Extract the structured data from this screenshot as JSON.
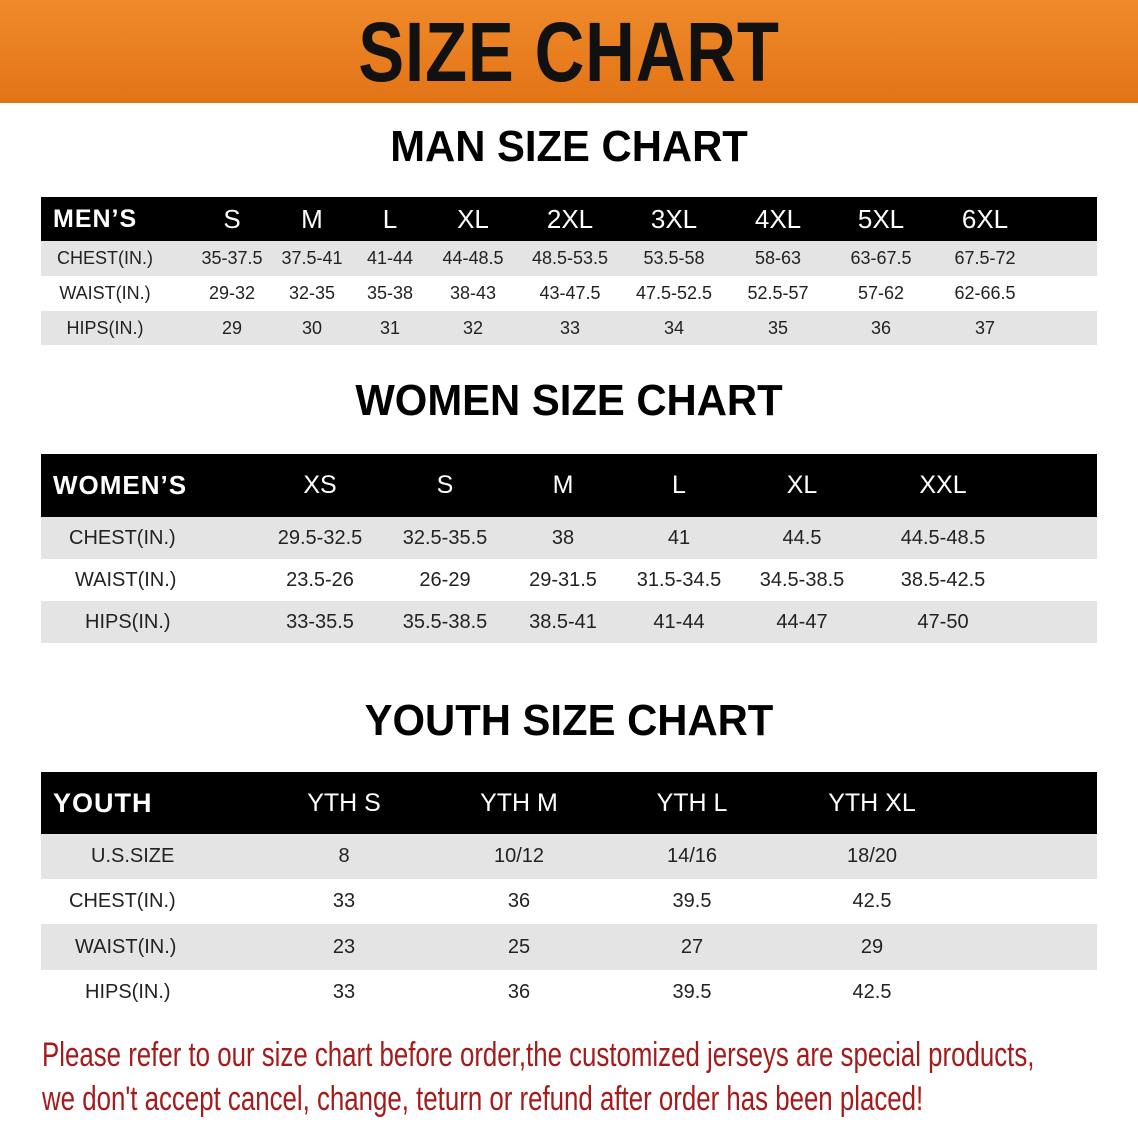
{
  "banner_title": "SIZE CHART",
  "men": {
    "title": "MAN SIZE CHART",
    "header_label": "MEN’S",
    "sizes": [
      "S",
      "M",
      "L",
      "XL",
      "2XL",
      "3XL",
      "4XL",
      "5XL",
      "6XL"
    ],
    "rows": [
      {
        "label": "CHEST(IN.)",
        "values": [
          "35-37.5",
          "37.5-41",
          "41-44",
          "44-48.5",
          "48.5-53.5",
          "53.5-58",
          "58-63",
          "63-67.5",
          "67.5-72"
        ]
      },
      {
        "label": "WAIST(IN.)",
        "values": [
          "29-32",
          "32-35",
          "35-38",
          "38-43",
          "43-47.5",
          "47.5-52.5",
          "52.5-57",
          "57-62",
          "62-66.5"
        ]
      },
      {
        "label": "HIPS(IN.)",
        "values": [
          "29",
          "30",
          "31",
          "32",
          "33",
          "34",
          "35",
          "36",
          "37"
        ]
      }
    ]
  },
  "women": {
    "title": "WOMEN SIZE CHART",
    "header_label": "WOMEN’S",
    "sizes": [
      "XS",
      "S",
      "M",
      "L",
      "XL",
      "XXL"
    ],
    "rows": [
      {
        "label": "CHEST(IN.)",
        "values": [
          "29.5-32.5",
          "32.5-35.5",
          "38",
          "41",
          "44.5",
          "44.5-48.5"
        ]
      },
      {
        "label": "WAIST(IN.)",
        "values": [
          "23.5-26",
          "26-29",
          "29-31.5",
          "31.5-34.5",
          "34.5-38.5",
          "38.5-42.5"
        ]
      },
      {
        "label": "HIPS(IN.)",
        "values": [
          "33-35.5",
          "35.5-38.5",
          "38.5-41",
          "41-44",
          "44-47",
          "47-50"
        ]
      }
    ]
  },
  "youth": {
    "title": "YOUTH SIZE CHART",
    "header_label": "YOUTH",
    "sizes": [
      "YTH S",
      "YTH M",
      "YTH L",
      "YTH XL"
    ],
    "rows": [
      {
        "label": "U.S.SIZE",
        "values": [
          "8",
          "10/12",
          "14/16",
          "18/20"
        ]
      },
      {
        "label": "CHEST(IN.)",
        "values": [
          "33",
          "36",
          "39.5",
          "42.5"
        ]
      },
      {
        "label": "WAIST(IN.)",
        "values": [
          "23",
          "25",
          "27",
          "29"
        ]
      },
      {
        "label": "HIPS(IN.)",
        "values": [
          "33",
          "36",
          "39.5",
          "42.5"
        ]
      }
    ]
  },
  "note": {
    "line1": "Please refer to our size chart before order,the customized jerseys are special products,",
    "line2": "we don't accept cancel, change, teturn or refund after order has been placed!"
  },
  "colors": {
    "banner": "#e87a1c",
    "header_bg": "#000000",
    "row_alt": "#e4e4e4",
    "note": "#a51b1b"
  }
}
